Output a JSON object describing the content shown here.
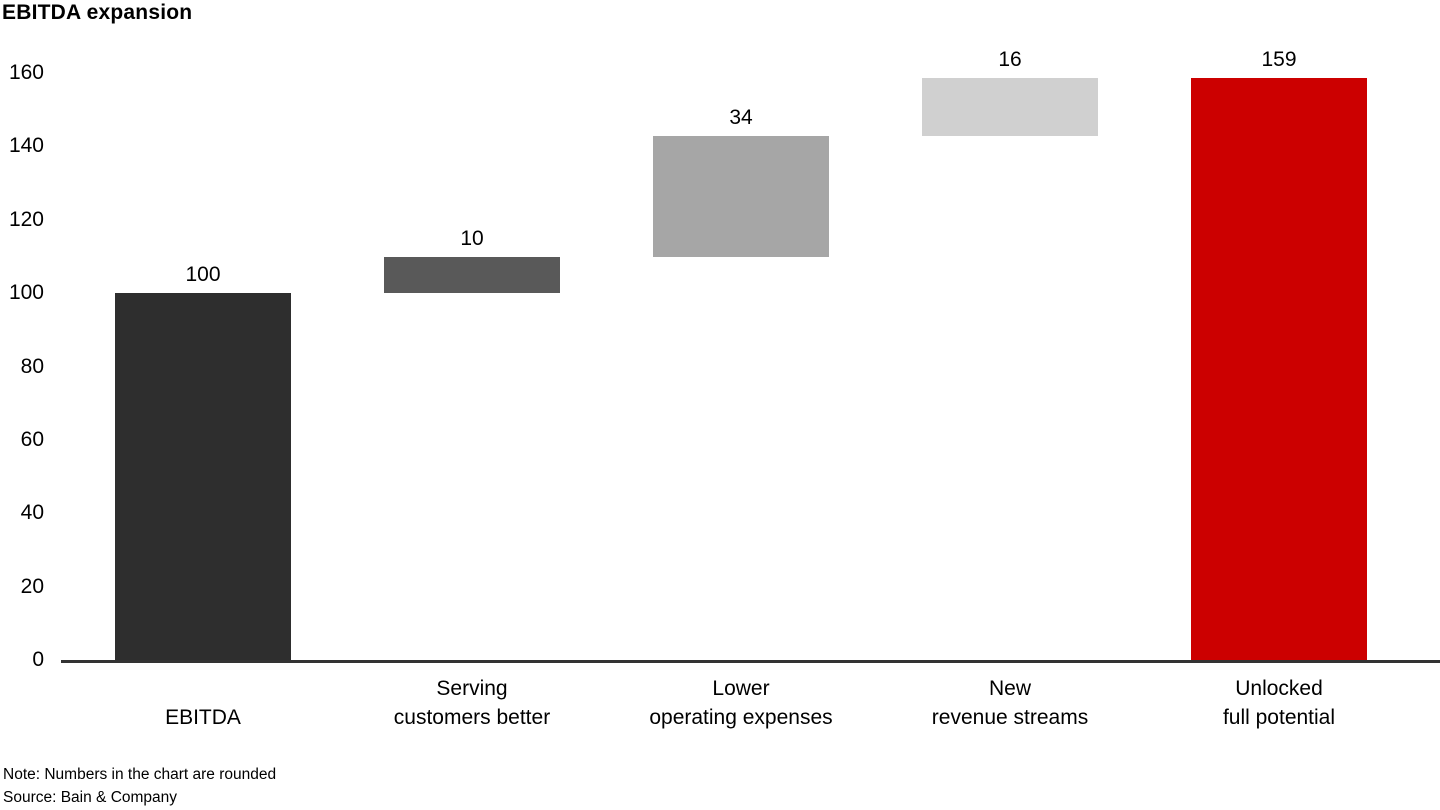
{
  "title": "EBITDA expansion",
  "note": "Note: Numbers in the chart are rounded",
  "source": "Source: Bain & Company",
  "colors": {
    "axis_line": "#333333",
    "text": "#000000",
    "background": "#ffffff",
    "accent_red": "#cc0000"
  },
  "chart_data": {
    "type": "bar",
    "subtype": "waterfall",
    "title": "EBITDA expansion",
    "xlabel": "",
    "ylabel": "",
    "grid": false,
    "legend": false,
    "y_axis": {
      "min": 0,
      "max": 160,
      "tick_step": 20,
      "ticks": [
        0,
        20,
        40,
        60,
        80,
        100,
        120,
        140,
        160
      ]
    },
    "categories": [
      "EBITDA",
      "Serving customers better",
      "Lower operating expenses",
      "New revenue streams",
      "Unlocked full potential"
    ],
    "bars": [
      {
        "label": "EBITDA",
        "label_lines": [
          "EBITDA"
        ],
        "value_label": "100",
        "value": 100,
        "cumulative_start": 0,
        "cumulative_end": 100,
        "color": "#2e2e2e"
      },
      {
        "label": "Serving customers better",
        "label_lines": [
          "Serving",
          "customers better"
        ],
        "value_label": "10",
        "value": 10,
        "cumulative_start": 100,
        "cumulative_end": 109.8,
        "color": "#595959"
      },
      {
        "label": "Lower operating expenses",
        "label_lines": [
          "Lower",
          "operating expenses"
        ],
        "value_label": "34",
        "value": 34,
        "cumulative_start": 109.8,
        "cumulative_end": 142.9,
        "color": "#a6a6a6"
      },
      {
        "label": "New revenue streams",
        "label_lines": [
          "New",
          "revenue streams"
        ],
        "value_label": "16",
        "value": 16,
        "cumulative_start": 142.9,
        "cumulative_end": 158.6,
        "color": "#d0d0d0"
      },
      {
        "label": "Unlocked full potential",
        "label_lines": [
          "Unlocked",
          "full potential"
        ],
        "value_label": "159",
        "value": 159,
        "cumulative_start": 0,
        "cumulative_end": 158.6,
        "color": "#cc0000"
      }
    ]
  }
}
